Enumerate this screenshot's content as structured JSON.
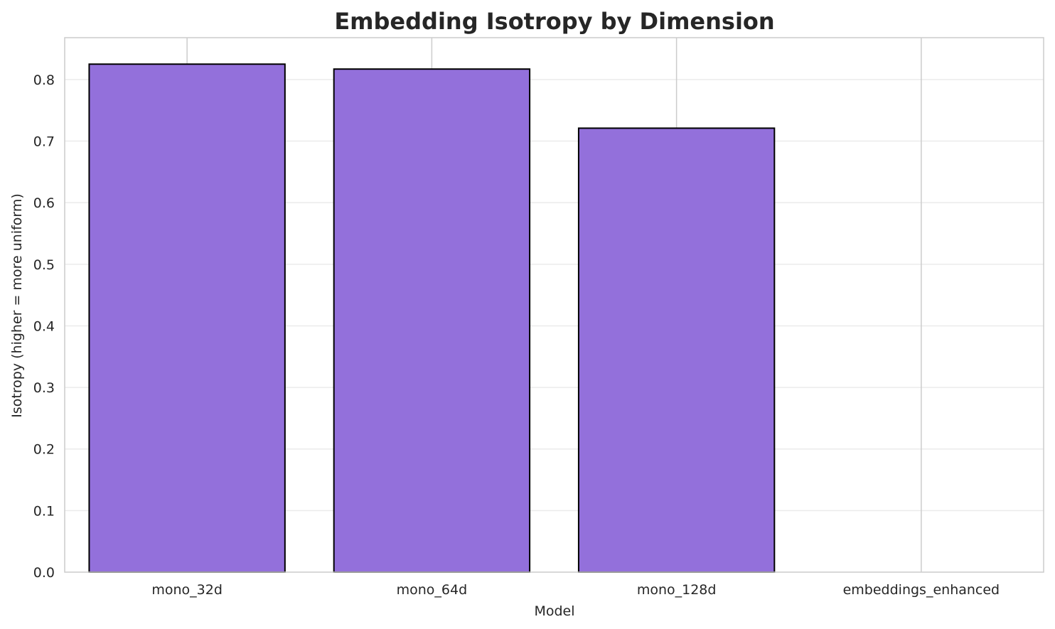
{
  "chart_data": {
    "type": "bar",
    "title": "Embedding Isotropy by Dimension",
    "xlabel": "Model",
    "ylabel": "Isotropy (higher = more uniform)",
    "categories": [
      "mono_32d",
      "mono_64d",
      "mono_128d",
      "embeddings_enhanced"
    ],
    "values": [
      0.825,
      0.817,
      0.721,
      0.0
    ],
    "ylim": [
      0,
      0.868
    ],
    "yticks": [
      0.0,
      0.1,
      0.2,
      0.3,
      0.4,
      0.5,
      0.6,
      0.7,
      0.8
    ],
    "ytick_labels": [
      "0.0",
      "0.1",
      "0.2",
      "0.3",
      "0.4",
      "0.5",
      "0.6",
      "0.7",
      "0.8"
    ],
    "grid": true,
    "colors": {
      "bar_fill": "#9370db",
      "bar_edge": "#000000",
      "grid": "#ebebeb",
      "xgrid": "#cccccc",
      "frame": "#cccccc",
      "text": "#262626"
    }
  }
}
